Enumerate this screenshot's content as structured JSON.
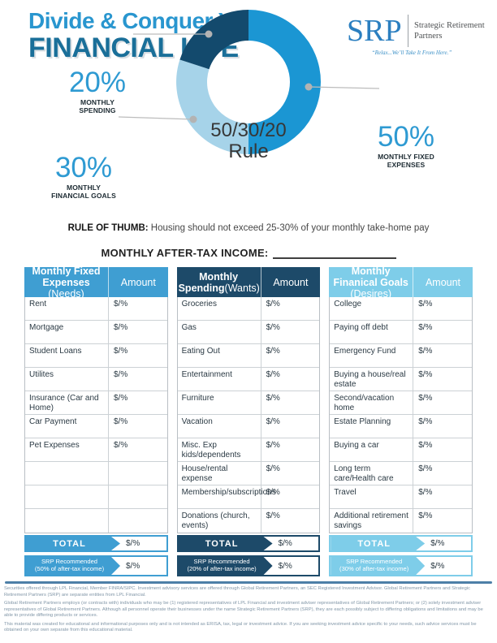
{
  "header": {
    "title_line1": "Divide & Conquer Your",
    "title_line2": "FINANCIAL LIFE",
    "logo": {
      "abbr": "SRP",
      "name": "Strategic Retirement Partners",
      "tagline": "“Relax...We’ll Take It From Here.”"
    }
  },
  "chart_data": {
    "type": "pie",
    "title": "50/30/20 Rule",
    "center_line1": "50/30/20",
    "center_line2": "Rule",
    "legend_position": "callouts",
    "slices": [
      {
        "label": "MONTHLY FIXED EXPENSES",
        "pct_label": "50%",
        "value": 50,
        "color": "#1b96d3"
      },
      {
        "label": "MONTHLY FINANCIAL GOALS",
        "pct_label": "30%",
        "value": 30,
        "color": "#a6d3e9"
      },
      {
        "label": "MONTHLY SPENDING",
        "pct_label": "20%",
        "value": 20,
        "color": "#134a6d"
      }
    ]
  },
  "rule_of_thumb": {
    "label": "RULE OF THUMB:",
    "text": " Housing should not exceed 25-30% of your monthly take-home pay"
  },
  "income_heading": "MONTHLY AFTER-TAX INCOME:",
  "tables": [
    {
      "title": "Monthly Fixed Expenses",
      "subtitle": " (Needs)",
      "amount_header": "Amount",
      "theme": "#3f9ed2",
      "rows": [
        {
          "label": "Rent",
          "value": "$/%"
        },
        {
          "label": "Mortgage",
          "value": "$/%"
        },
        {
          "label": "Student Loans",
          "value": "$/%"
        },
        {
          "label": "Utilites",
          "value": "$/%"
        },
        {
          "label": "Insurance (Car and Home)",
          "value": "$/%"
        },
        {
          "label": "Car Payment",
          "value": "$/%"
        },
        {
          "label": "Pet Expenses",
          "value": "$/%"
        },
        {
          "label": "",
          "value": ""
        },
        {
          "label": "",
          "value": ""
        },
        {
          "label": "",
          "value": ""
        }
      ],
      "total_label": "TOTAL",
      "total_value": "$/%",
      "recommended_line1": "SRP Recommended",
      "recommended_line2": "(50% of after-tax income)",
      "recommended_value": "$/%"
    },
    {
      "title": "Monthly Spending",
      "subtitle": "(Wants)",
      "amount_header": "Amount",
      "theme": "#1d4a69",
      "rows": [
        {
          "label": "Groceries",
          "value": "$/%"
        },
        {
          "label": "Gas",
          "value": "$/%"
        },
        {
          "label": "Eating Out",
          "value": "$/%"
        },
        {
          "label": "Entertainment",
          "value": "$/%"
        },
        {
          "label": "Furniture",
          "value": "$/%"
        },
        {
          "label": "Vacation",
          "value": "$/%"
        },
        {
          "label": "Misc. Exp kids/dependents",
          "value": "$/%"
        },
        {
          "label": "House/rental expense",
          "value": "$/%"
        },
        {
          "label": "Membership/subscriptions",
          "value": "$/%"
        },
        {
          "label": "Donations (church, events)",
          "value": "$/%"
        }
      ],
      "total_label": "TOTAL",
      "total_value": "$/%",
      "recommended_line1": "SRP Recommended",
      "recommended_line2": "(20% of after-tax income)",
      "recommended_value": "$/%"
    },
    {
      "title": "Monthly Finanical Goals",
      "subtitle": " (Desires)",
      "amount_header": "Amount",
      "theme": "#7ecde9",
      "rows": [
        {
          "label": "College",
          "value": "$/%"
        },
        {
          "label": "Paying off debt",
          "value": "$/%"
        },
        {
          "label": "Emergency Fund",
          "value": "$/%"
        },
        {
          "label": "Buying a house/real estate",
          "value": "$/%"
        },
        {
          "label": "Second/vacation home",
          "value": "$/%"
        },
        {
          "label": "Estate Planning",
          "value": "$/%"
        },
        {
          "label": "Buying a car",
          "value": "$/%"
        },
        {
          "label": "Long term care/Health care",
          "value": "$/%"
        },
        {
          "label": "Travel",
          "value": "$/%"
        },
        {
          "label": "Additional retirement savings",
          "value": "$/%"
        }
      ],
      "total_label": "TOTAL",
      "total_value": "$/%",
      "recommended_line1": "SRP Recommended",
      "recommended_line2": "(30% of after-tax income)",
      "recommended_value": "$/%"
    }
  ],
  "footer": {
    "paragraphs": [
      "Securities offered through LPL Financial, Member FINRA/SIPC. Investment advisory services are offered through Global Retirement Partners, an SEC Registered Investment Advisor. Global Retirement Partners and Strategic Retirement Partners (SRP) are separate entities from LPL Financial.",
      "Global Retirement Partners employs (or contracts with) individuals who may be (1) registered representatives of LPL Financial and investment adviser representatives of Global Retirement Partners; or (2) solely investment adviser representatives of Global Retirement Partners. Although all personnel operate their businesses under the name Strategic Retirement Partners (SRP), they are each possibly subject to differing obligations and limitations and may be able to provide differing products or services.",
      "This material was created for educational and informational purposes only and is not intended as ERISA, tax, legal or investment advice. If you are seeking investment advice specific to your needs, such advice services must be obtained on your own separate from this educational material."
    ]
  }
}
